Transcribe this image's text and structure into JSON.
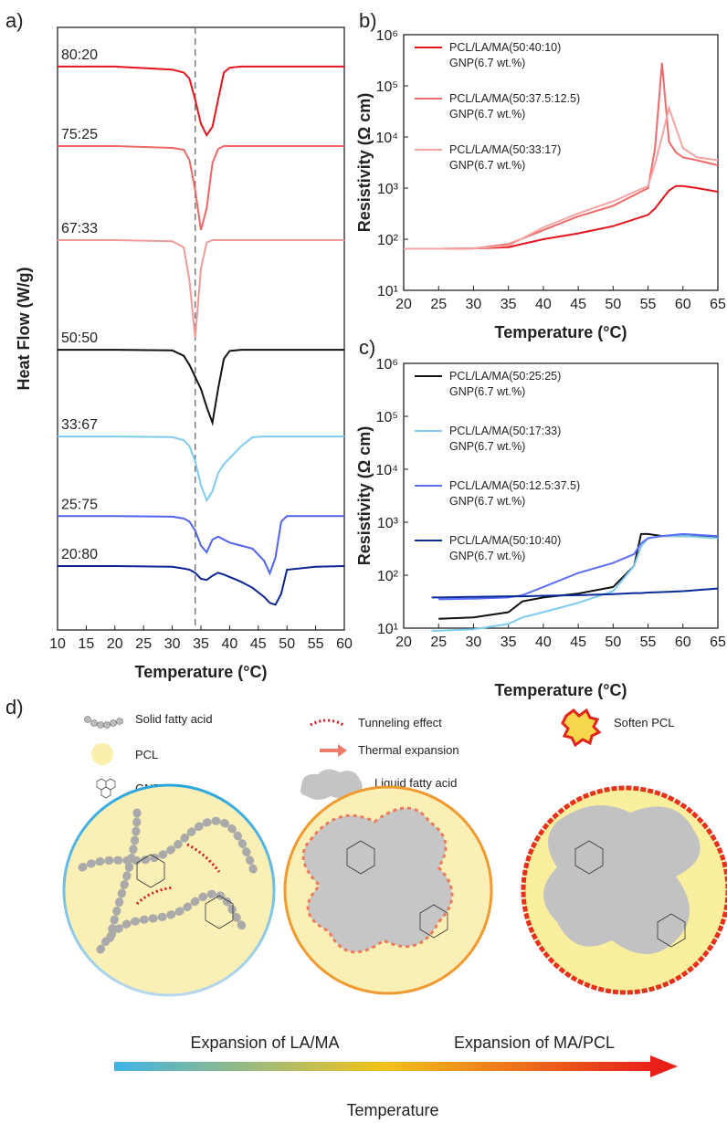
{
  "chart_data": [
    {
      "type": "line",
      "panel_label": "a)",
      "x_label": "Temperature (°C)",
      "y_label": "Heat Flow (W/g)",
      "x": [
        10,
        20,
        30,
        32,
        33,
        34,
        35,
        36,
        37,
        38,
        39,
        40,
        42,
        44,
        46,
        47,
        48,
        49,
        50,
        55,
        60
      ],
      "xlim": [
        10,
        60
      ],
      "xticks": [
        10,
        15,
        20,
        25,
        30,
        35,
        40,
        45,
        50,
        55,
        60
      ],
      "ylim": [
        0,
        100
      ],
      "vline_x": 34,
      "series": [
        {
          "name": "80:20",
          "color": "#e3141b",
          "values": [
            93.5,
            93.5,
            93,
            92.5,
            91.5,
            88,
            84,
            82.1,
            83.5,
            88,
            92.5,
            93.3,
            93.5,
            93.5,
            93.5,
            93.5,
            93.5,
            93.5,
            93.5,
            93.5,
            93.5
          ]
        },
        {
          "name": "75:25",
          "color": "#ee6767",
          "values": [
            80.3,
            80.3,
            80,
            79.7,
            78,
            73,
            66.4,
            70,
            77.5,
            79.8,
            80.3,
            80.3,
            80.3,
            80.3,
            80.3,
            80.3,
            80.3,
            80.3,
            80.3,
            80.3,
            80.3
          ]
        },
        {
          "name": "67:33",
          "color": "#f19a9a",
          "values": [
            64.7,
            64.7,
            64.5,
            63.5,
            58,
            48.5,
            60,
            64.3,
            64.7,
            64.7,
            64.7,
            64.7,
            64.7,
            64.7,
            64.7,
            64.7,
            64.7,
            64.7,
            64.7,
            64.7,
            64.7
          ]
        },
        {
          "name": "50:50",
          "color": "#111111",
          "values": [
            46.5,
            46.5,
            46.4,
            45.5,
            44,
            42,
            40,
            37,
            34.4,
            40,
            45,
            46.3,
            46.5,
            46.5,
            46.5,
            46.5,
            46.5,
            46.5,
            46.5,
            46.5,
            46.5
          ]
        },
        {
          "name": "33:67",
          "color": "#7ecbef",
          "values": [
            32.1,
            32.1,
            32,
            31.5,
            30.5,
            28,
            24,
            21.5,
            23,
            26,
            27.5,
            28.5,
            30.5,
            32,
            32.1,
            32.1,
            32.1,
            32.1,
            32.1,
            32.1,
            32.1
          ]
        },
        {
          "name": "25:75",
          "color": "#4f63f0",
          "values": [
            18.9,
            18.9,
            18.8,
            18.5,
            18,
            16.5,
            14,
            12.9,
            15,
            15.5,
            15,
            14.5,
            14,
            13.5,
            11.5,
            9.4,
            12,
            18,
            18.9,
            18.9,
            18.9
          ]
        },
        {
          "name": "20:80",
          "color": "#0b2494",
          "values": [
            10.6,
            10.6,
            10.5,
            10.2,
            10,
            9.5,
            8.5,
            8.3,
            9,
            9.5,
            9.2,
            8.8,
            8,
            7,
            5.5,
            4.5,
            4.2,
            6,
            10,
            10.5,
            10.6
          ]
        }
      ]
    },
    {
      "type": "line",
      "panel_label": "b)",
      "x_label": "Temperature (°C)",
      "y_label": "Resistivity (Ω cm)",
      "log_y": true,
      "x": [
        20,
        25,
        30,
        35,
        40,
        45,
        50,
        55,
        56,
        57,
        58,
        59,
        60,
        62,
        65
      ],
      "xlim": [
        20,
        65
      ],
      "xticks": [
        20,
        25,
        30,
        35,
        40,
        45,
        50,
        55,
        60,
        65
      ],
      "ylim": [
        10,
        1000000
      ],
      "yticks": [
        {
          "value": 10,
          "label": "10¹"
        },
        {
          "value": 100,
          "label": "10²"
        },
        {
          "value": 1000,
          "label": "10³"
        },
        {
          "value": 10000,
          "label": "10⁴"
        },
        {
          "value": 100000,
          "label": "10⁵"
        },
        {
          "value": 1000000,
          "label": "10⁶"
        }
      ],
      "series": [
        {
          "name": "PCL/LA/MA(50:40:10)\nGNP(6.7 wt.%)",
          "color": "#e3141b",
          "values": [
            65,
            65,
            66,
            70,
            100,
            130,
            180,
            300,
            400,
            600,
            900,
            1100,
            1100,
            1000,
            850
          ]
        },
        {
          "name": "PCL/LA/MA(50:37.5:12.5)\nGNP(6.7 wt.%)",
          "color": "#ef6a6a",
          "values": [
            65,
            65,
            66,
            80,
            150,
            280,
            450,
            1000,
            6000,
            280000,
            8000,
            5000,
            4000,
            3500,
            2800
          ]
        },
        {
          "name": "PCL/LA/MA(50:33:17)\nGNP(6.7 wt.%)",
          "color": "#f5a3a3",
          "values": [
            65,
            65,
            66,
            75,
            170,
            320,
            550,
            1100,
            3000,
            10000,
            37000,
            15000,
            6000,
            4000,
            3500
          ]
        }
      ]
    },
    {
      "type": "line",
      "panel_label": "c)",
      "x_label": "Temperature (°C)",
      "y_label": "Resistivity (Ω cm)",
      "log_y": true,
      "x": [
        24,
        25,
        30,
        35,
        37,
        40,
        45,
        50,
        53,
        54,
        55,
        57,
        60,
        65
      ],
      "xlim": [
        20,
        65
      ],
      "xticks": [
        20,
        25,
        30,
        35,
        40,
        45,
        50,
        55,
        60,
        65
      ],
      "ylim": [
        10,
        1000000
      ],
      "yticks": [
        {
          "value": 10,
          "label": "10¹"
        },
        {
          "value": 100,
          "label": "10²"
        },
        {
          "value": 1000,
          "label": "10³"
        },
        {
          "value": 10000,
          "label": "10⁴"
        },
        {
          "value": 100000,
          "label": "10⁵"
        },
        {
          "value": 1000000,
          "label": "10⁶"
        }
      ],
      "series": [
        {
          "name": "PCL/LA/MA(50:25:25)\nGNP(6.7 wt.%)",
          "color": "#111111",
          "values": [
            null,
            15,
            16,
            20,
            32,
            38,
            45,
            60,
            150,
            600,
            600,
            550,
            550,
            520
          ]
        },
        {
          "name": "PCL/LA/MA(50:17:33)\nGNP(6.7 wt.%)",
          "color": "#7ecbef",
          "values": [
            9,
            9,
            9.5,
            12,
            16,
            20,
            30,
            50,
            150,
            350,
            500,
            550,
            550,
            500
          ]
        },
        {
          "name": "PCL/LA/MA(50:12.5:37.5)\nGNP(6.7 wt.%)",
          "color": "#5b6ef5",
          "values": [
            null,
            35,
            36,
            38,
            42,
            60,
            110,
            170,
            250,
            400,
            500,
            550,
            600,
            550
          ]
        },
        {
          "name": "PCL/LA/MA(50:10:40)\nGNP(6.7 wt.%)",
          "color": "#0a2a9a",
          "values": [
            38,
            38,
            39,
            40,
            40,
            41,
            42,
            44,
            46,
            46,
            47,
            48,
            50,
            56
          ]
        }
      ]
    }
  ],
  "diagram": {
    "panel_label": "d)",
    "legend": [
      "Solid fatty acid",
      "PCL",
      "GNP",
      "Tunneling effect",
      "Thermal expansion",
      "Liquid fatty acid",
      "Soften PCL"
    ],
    "arrow_labels": [
      "Expansion of LA/MA",
      "Expansion of MA/PCL"
    ],
    "arrow_title": "Temperature"
  }
}
